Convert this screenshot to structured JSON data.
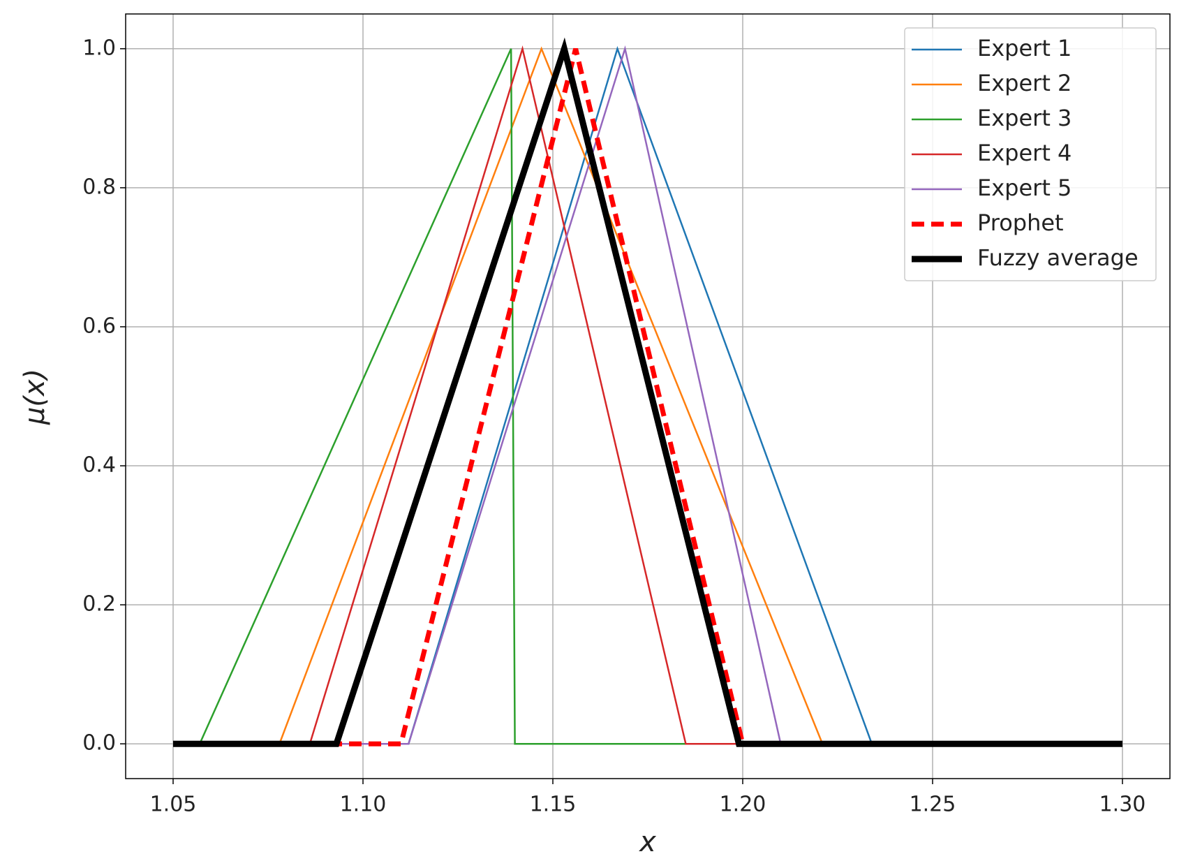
{
  "chart_data": {
    "type": "line",
    "xlabel": "x",
    "ylabel": "μ(x)",
    "xlim": [
      1.0375,
      1.3125
    ],
    "ylim": [
      -0.05,
      1.05
    ],
    "xticks": [
      1.05,
      {
        "value": 1.1,
        "label": "1.10"
      },
      1.15,
      {
        "value": 1.2,
        "label": "1.20"
      },
      1.25,
      {
        "value": 1.3,
        "label": "1.30"
      }
    ],
    "yticks": [
      {
        "value": 0,
        "label": "0.0"
      },
      0.2,
      0.4,
      0.6,
      0.8,
      {
        "value": 1,
        "label": "1.0"
      }
    ],
    "grid": true,
    "legend": "upper right",
    "series": [
      {
        "name": "Expert 1",
        "color": "#1f77b4",
        "x": [
          1.05,
          1.112,
          1.167,
          1.234,
          1.3
        ],
        "values": [
          0,
          0,
          1,
          0,
          0
        ]
      },
      {
        "name": "Expert 2",
        "color": "#ff7f0e",
        "x": [
          1.05,
          1.078,
          1.147,
          1.221,
          1.3
        ],
        "values": [
          0,
          0,
          1,
          0,
          0
        ]
      },
      {
        "name": "Expert 3",
        "color": "#2ca02c",
        "x": [
          1.05,
          1.057,
          1.139,
          1.14,
          1.3
        ],
        "values": [
          0,
          0,
          1,
          0,
          0
        ]
      },
      {
        "name": "Expert 4",
        "color": "#d62728",
        "x": [
          1.05,
          1.086,
          1.142,
          1.185,
          1.3
        ],
        "values": [
          0,
          0,
          1,
          0,
          0
        ]
      },
      {
        "name": "Expert 5",
        "color": "#9467bd",
        "x": [
          1.05,
          1.112,
          1.169,
          1.21,
          1.3
        ],
        "values": [
          0,
          0,
          1,
          0,
          0
        ]
      },
      {
        "name": "Prophet",
        "color": "#ff0000",
        "dashed": true,
        "x": [
          1.05,
          1.11,
          1.156,
          1.2,
          1.3
        ],
        "values": [
          0,
          0,
          1,
          0,
          0
        ]
      },
      {
        "name": "Fuzzy average",
        "color": "#000000",
        "bold": true,
        "x": [
          1.05,
          1.093,
          1.153,
          1.199,
          1.3
        ],
        "values": [
          0,
          0,
          1,
          0,
          0
        ]
      }
    ]
  }
}
